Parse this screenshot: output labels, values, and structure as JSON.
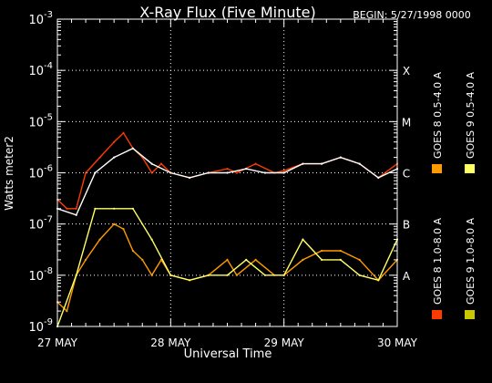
{
  "chart_data": {
    "type": "line",
    "title": "X-Ray Flux (Five Minute)",
    "begin_label": "BEGIN: 5/27/1998 0000",
    "xlabel": "Universal Time",
    "ylabel": "Watts meter2",
    "yscale": "log",
    "ylim": [
      1e-09,
      0.001
    ],
    "xlim": [
      "1998-05-27T00:00",
      "1998-05-30T00:00"
    ],
    "x_ticks": [
      "27 MAY",
      "28 MAY",
      "29 MAY",
      "30 MAY"
    ],
    "y_ticks": [
      {
        "base": "10",
        "exp": "-9"
      },
      {
        "base": "10",
        "exp": "-8"
      },
      {
        "base": "10",
        "exp": "-7"
      },
      {
        "base": "10",
        "exp": "-6"
      },
      {
        "base": "10",
        "exp": "-5"
      },
      {
        "base": "10",
        "exp": "-4"
      },
      {
        "base": "10",
        "exp": "-3"
      }
    ],
    "flare_classes": [
      {
        "label": "A",
        "value": 1e-08
      },
      {
        "label": "B",
        "value": 1e-07
      },
      {
        "label": "C",
        "value": 1e-06
      },
      {
        "label": "M",
        "value": 1e-05
      },
      {
        "label": "X",
        "value": 0.0001
      }
    ],
    "grid": true,
    "legend_position": "right",
    "series": [
      {
        "name": "GOES 8 1.0-8.0 A",
        "color": "#ff3c00",
        "x": [
          "1998-05-27T00:00",
          "1998-05-27T02:00",
          "1998-05-27T04:00",
          "1998-05-27T06:00",
          "1998-05-27T09:00",
          "1998-05-27T12:00",
          "1998-05-27T14:00",
          "1998-05-27T16:00",
          "1998-05-27T18:00",
          "1998-05-27T20:00",
          "1998-05-27T22:00",
          "1998-05-28T00:00",
          "1998-05-28T04:00",
          "1998-05-28T08:00",
          "1998-05-28T12:00",
          "1998-05-28T14:00",
          "1998-05-28T18:00",
          "1998-05-28T22:00",
          "1998-05-29T00:00",
          "1998-05-29T04:00",
          "1998-05-29T08:00",
          "1998-05-29T12:00",
          "1998-05-29T16:00",
          "1998-05-29T20:00",
          "1998-05-30T00:00"
        ],
        "values": [
          3e-07,
          2e-07,
          2e-07,
          1e-06,
          2e-06,
          4e-06,
          6e-06,
          3e-06,
          2e-06,
          1e-06,
          1.5e-06,
          1e-06,
          8e-07,
          1e-06,
          1.2e-06,
          1e-06,
          1.5e-06,
          1e-06,
          1.1e-06,
          1.5e-06,
          1.5e-06,
          2e-06,
          1.5e-06,
          8e-07,
          1.5e-06
        ]
      },
      {
        "name": "GOES 8 0.5-4.0 A",
        "color": "#ff9a00",
        "x": [
          "1998-05-27T00:00",
          "1998-05-27T02:00",
          "1998-05-27T04:00",
          "1998-05-27T06:00",
          "1998-05-27T09:00",
          "1998-05-27T12:00",
          "1998-05-27T14:00",
          "1998-05-27T16:00",
          "1998-05-27T18:00",
          "1998-05-27T20:00",
          "1998-05-27T22:00",
          "1998-05-28T00:00",
          "1998-05-28T04:00",
          "1998-05-28T08:00",
          "1998-05-28T12:00",
          "1998-05-28T14:00",
          "1998-05-28T18:00",
          "1998-05-28T22:00",
          "1998-05-29T00:00",
          "1998-05-29T04:00",
          "1998-05-29T08:00",
          "1998-05-29T12:00",
          "1998-05-29T16:00",
          "1998-05-29T20:00",
          "1998-05-30T00:00"
        ],
        "values": [
          3e-09,
          2e-09,
          1e-08,
          2e-08,
          5e-08,
          1e-07,
          8e-08,
          3e-08,
          2e-08,
          1e-08,
          2e-08,
          1e-08,
          8e-09,
          1e-08,
          2e-08,
          1e-08,
          2e-08,
          1e-08,
          1e-08,
          2e-08,
          3e-08,
          3e-08,
          2e-08,
          8e-09,
          2e-08
        ]
      },
      {
        "name": "GOES 9 1.0-8.0 A",
        "color": "#ffffff",
        "x": [
          "1998-05-27T00:00",
          "1998-05-27T04:00",
          "1998-05-27T08:00",
          "1998-05-27T12:00",
          "1998-05-27T16:00",
          "1998-05-27T20:00",
          "1998-05-28T00:00",
          "1998-05-28T04:00",
          "1998-05-28T08:00",
          "1998-05-28T12:00",
          "1998-05-28T16:00",
          "1998-05-28T20:00",
          "1998-05-29T00:00",
          "1998-05-29T04:00",
          "1998-05-29T08:00",
          "1998-05-29T12:00",
          "1998-05-29T16:00",
          "1998-05-29T20:00",
          "1998-05-30T00:00"
        ],
        "values": [
          2e-07,
          1.5e-07,
          1e-06,
          2e-06,
          3e-06,
          1.5e-06,
          1e-06,
          8e-07,
          1e-06,
          1e-06,
          1.2e-06,
          1e-06,
          1e-06,
          1.5e-06,
          1.5e-06,
          2e-06,
          1.5e-06,
          8e-07,
          1.2e-06
        ]
      },
      {
        "name": "GOES 9 0.5-4.0 A",
        "color": "#ffff66",
        "x": [
          "1998-05-27T00:00",
          "1998-05-27T04:00",
          "1998-05-27T08:00",
          "1998-05-27T12:00",
          "1998-05-27T16:00",
          "1998-05-27T20:00",
          "1998-05-28T00:00",
          "1998-05-28T04:00",
          "1998-05-28T08:00",
          "1998-05-28T12:00",
          "1998-05-28T16:00",
          "1998-05-28T20:00",
          "1998-05-29T00:00",
          "1998-05-29T04:00",
          "1998-05-29T08:00",
          "1998-05-29T12:00",
          "1998-05-29T16:00",
          "1998-05-29T20:00",
          "1998-05-30T00:00"
        ],
        "values": [
          1e-09,
          1e-08,
          2e-07,
          2e-07,
          2e-07,
          5e-08,
          1e-08,
          8e-09,
          1e-08,
          1e-08,
          2e-08,
          1e-08,
          1e-08,
          5e-08,
          2e-08,
          2e-08,
          1e-08,
          8e-09,
          5e-08
        ]
      }
    ]
  },
  "legend_swatch_colors": [
    "#ff3c00",
    "#ff9a00",
    "#ffff66",
    "#c8c800"
  ]
}
